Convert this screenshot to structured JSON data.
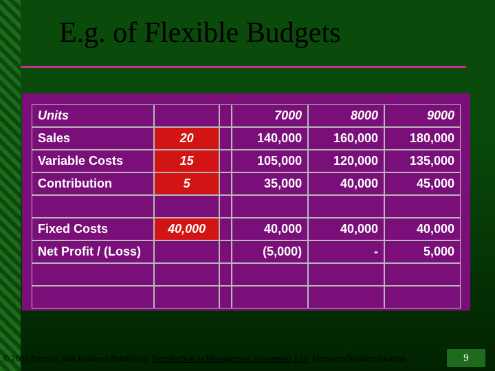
{
  "colors": {
    "bg_gradient_start": "#0a4a0a",
    "bg_gradient_end": "#002200",
    "left_stripe": "#1e6b1e",
    "title_text": "#000000",
    "title_underline": "#c83296",
    "table_bg": "#7a0f7a",
    "table_border": "#b8b8b8",
    "cell_text": "#ffffff",
    "red_cell_bg": "#d21414",
    "red_cell_text": "#ffffff",
    "footer_text": "#000000",
    "page_badge_bg": "#1e6b1e",
    "page_badge_text": "#ffffff"
  },
  "title": "E.g. of Flexible Budgets",
  "table": {
    "scenario_values": [
      "7000",
      "8000",
      "9000"
    ],
    "rows": [
      {
        "label": "Units",
        "label_italic": true,
        "per_unit": "",
        "red": false,
        "values": [
          "7000",
          "8000",
          "9000"
        ],
        "values_italic": true
      },
      {
        "label": "Sales",
        "label_italic": false,
        "per_unit": "20",
        "red": true,
        "values": [
          "140,000",
          "160,000",
          "180,000"
        ],
        "values_italic": false
      },
      {
        "label": "Variable Costs",
        "label_italic": false,
        "per_unit": "15",
        "red": true,
        "values": [
          "105,000",
          "120,000",
          "135,000"
        ],
        "values_italic": false
      },
      {
        "label": "Contribution",
        "label_italic": false,
        "per_unit": "5",
        "red": true,
        "values": [
          "35,000",
          "40,000",
          "45,000"
        ],
        "values_italic": false
      },
      {
        "label": "",
        "label_italic": false,
        "per_unit": "",
        "red": false,
        "values": [
          "",
          "",
          ""
        ],
        "values_italic": false
      },
      {
        "label": "Fixed Costs",
        "label_italic": false,
        "per_unit": "40,000",
        "red": true,
        "values": [
          "40,000",
          "40,000",
          "40,000"
        ],
        "values_italic": false
      },
      {
        "label": "Net Profit / (Loss)",
        "label_italic": false,
        "per_unit": "",
        "red": false,
        "values": [
          "(5,000)",
          "-",
          "5,000"
        ],
        "values_italic": false
      },
      {
        "label": "",
        "label_italic": false,
        "per_unit": "",
        "red": false,
        "values": [
          "",
          "",
          ""
        ],
        "values_italic": false
      },
      {
        "label": "",
        "label_italic": false,
        "per_unit": "",
        "red": false,
        "values": [
          "",
          "",
          ""
        ],
        "values_italic": false
      }
    ]
  },
  "footer": {
    "copyright": "© 2002 Prentice Hall Business Publishing, ",
    "book_title": "Introduction to Management Accounting 12/e,",
    "authors": " Horngren/Sundem/Stratton"
  },
  "page_number": "9"
}
